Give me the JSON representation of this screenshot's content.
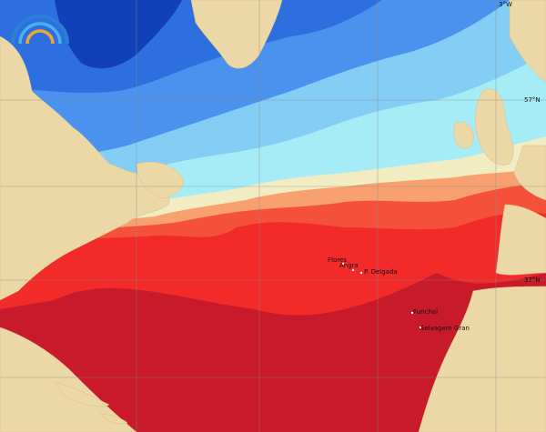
{
  "map": {
    "grid_labels": [
      "3°W",
      "57°N",
      "37°N"
    ],
    "places": [
      "Flores",
      "Angra",
      "P. Delgada",
      "Funchal",
      "Selvagem Gran"
    ]
  }
}
